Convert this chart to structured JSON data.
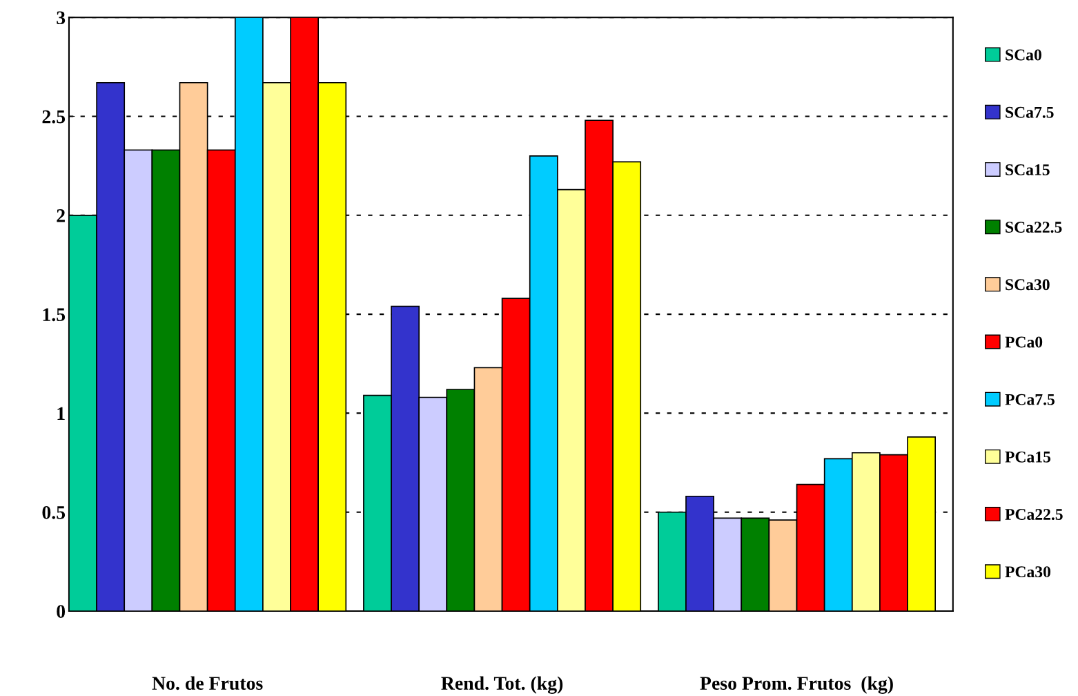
{
  "chart_data": {
    "type": "bar",
    "categories": [
      "No. de Frutos",
      "Rend. Tot. (kg)",
      "Peso Prom. Frutos  (kg)"
    ],
    "series": [
      {
        "name": "SCa0",
        "color": "#00cc99",
        "values": [
          2.0,
          1.09,
          0.5
        ]
      },
      {
        "name": "SCa7.5",
        "color": "#3333cc",
        "values": [
          2.67,
          1.54,
          0.58
        ]
      },
      {
        "name": "SCa15",
        "color": "#ccccff",
        "values": [
          2.33,
          1.08,
          0.47
        ]
      },
      {
        "name": "SCa22.5",
        "color": "#008000",
        "values": [
          2.33,
          1.12,
          0.47
        ]
      },
      {
        "name": "SCa30",
        "color": "#ffcc99",
        "values": [
          2.67,
          1.23,
          0.46
        ]
      },
      {
        "name": "PCa0",
        "color": "#ff0000",
        "values": [
          2.33,
          1.58,
          0.64
        ]
      },
      {
        "name": "PCa7.5",
        "color": "#00ccff",
        "values": [
          3.0,
          2.3,
          0.77
        ]
      },
      {
        "name": "PCa15",
        "color": "#ffff99",
        "values": [
          2.67,
          2.13,
          0.8
        ]
      },
      {
        "name": "PCa22.5",
        "color": "#ff0000",
        "values": [
          3.0,
          2.48,
          0.79
        ]
      },
      {
        "name": "PCa30",
        "color": "#ffff00",
        "values": [
          2.67,
          2.27,
          0.88
        ]
      }
    ],
    "ylim": [
      0,
      3
    ],
    "yticks": [
      0,
      0.5,
      1,
      1.5,
      2,
      2.5,
      3
    ],
    "grid": "y",
    "legend": "right"
  }
}
